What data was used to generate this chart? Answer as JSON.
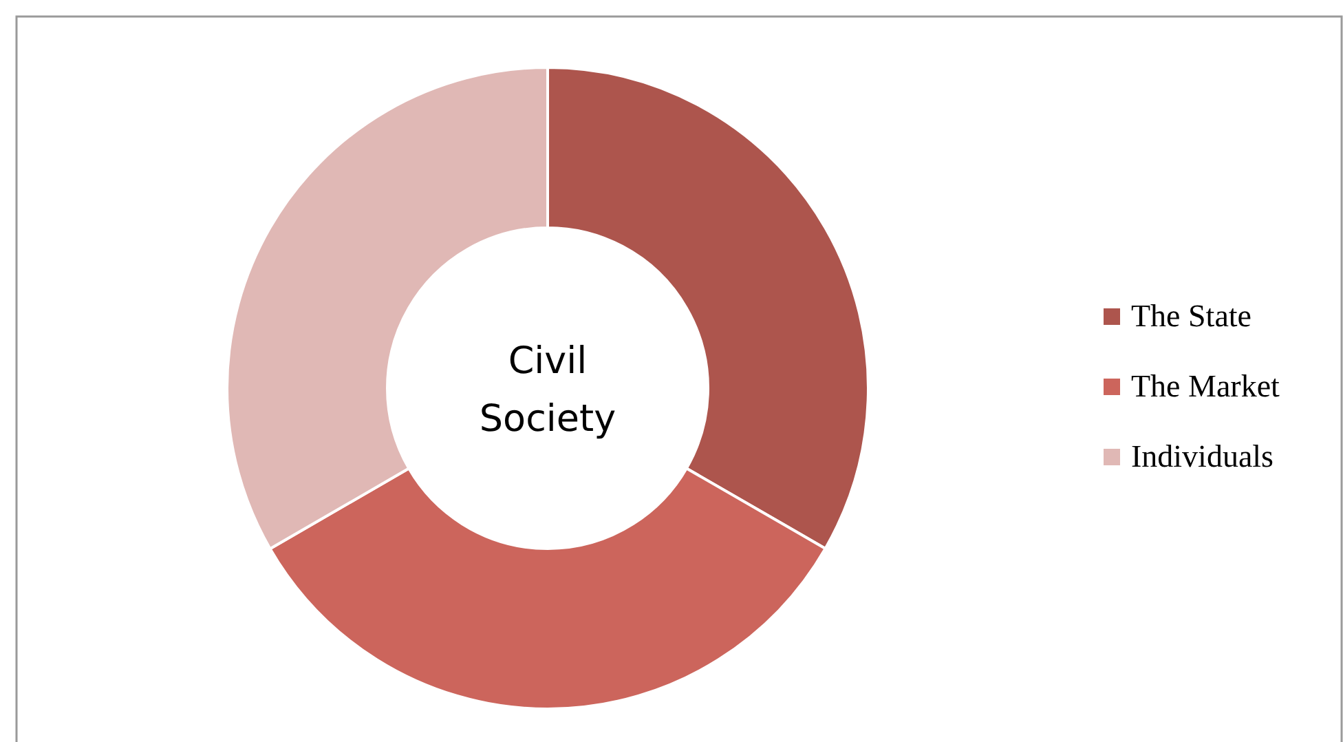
{
  "chart_data": {
    "type": "donut",
    "categories": [
      "The State",
      "The Market",
      "Individuals"
    ],
    "values": [
      33.33,
      33.33,
      33.34
    ],
    "colors": [
      "#ad554d",
      "#cc655c",
      "#e0b8b5"
    ],
    "legend": "right",
    "annotations": [
      "Civil Society"
    ]
  }
}
